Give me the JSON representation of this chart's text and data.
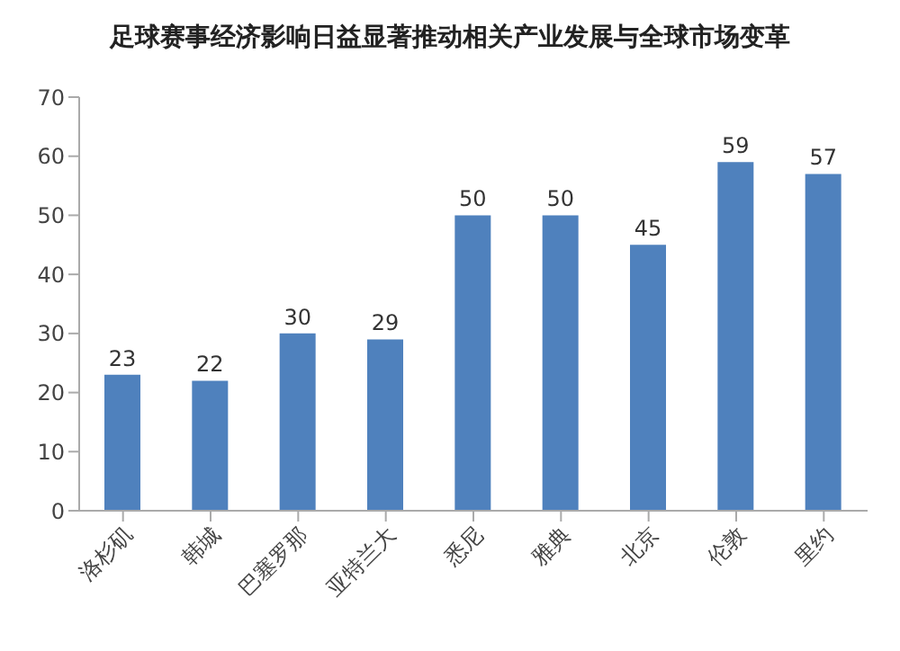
{
  "chart_data": {
    "type": "bar",
    "title": "足球赛事经济影响日益显著推动相关产业发展与全球市场变革",
    "categories": [
      "洛杉矶",
      "韩城",
      "巴塞罗那",
      "亚特兰大",
      "悉尼",
      "雅典",
      "北京",
      "伦敦",
      "里约"
    ],
    "values": [
      23,
      22,
      30,
      29,
      50,
      50,
      45,
      59,
      57
    ],
    "color": "#4f81bd",
    "ylim": [
      0,
      70
    ],
    "yticks": [
      0,
      10,
      20,
      30,
      40,
      50,
      60,
      70
    ],
    "grid": false,
    "data_labels": true
  }
}
